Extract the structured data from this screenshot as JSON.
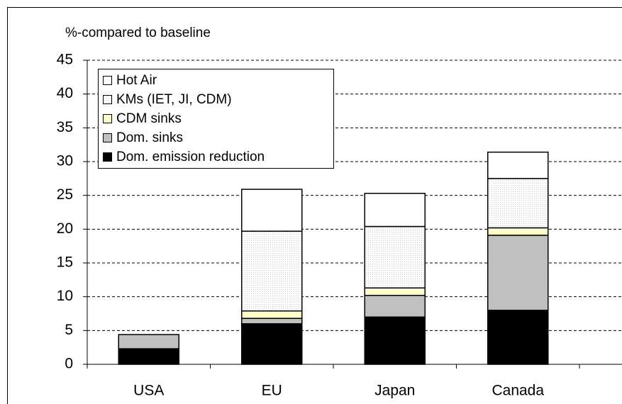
{
  "chart_data": {
    "type": "stacked-bar",
    "y_label": "%-compared to baseline",
    "categories": [
      "USA",
      "EU",
      "Japan",
      "Canada"
    ],
    "series": [
      {
        "name": "Dom. emission reduction",
        "color": "#000000",
        "values": [
          2.3,
          6,
          7,
          8
        ]
      },
      {
        "name": "Dom. sinks",
        "color": "#c0c0c0",
        "values": [
          2.1,
          0.8,
          3.2,
          11.1
        ]
      },
      {
        "name": "CDM sinks",
        "color": "#ffffcc",
        "values": [
          0,
          1.1,
          1.1,
          1.1
        ]
      },
      {
        "name": "KMs (IET, JI, CDM)",
        "color": "#f2f2f2",
        "values": [
          0,
          11.8,
          9.1,
          7.3
        ]
      },
      {
        "name": "Hot Air",
        "color": "#ffffff",
        "values": [
          0,
          6.2,
          4.9,
          3.9
        ]
      }
    ],
    "ylim": [
      0,
      45
    ],
    "yticks": [
      0,
      5,
      10,
      15,
      20,
      25,
      30,
      35,
      40,
      45
    ],
    "grid": true
  }
}
